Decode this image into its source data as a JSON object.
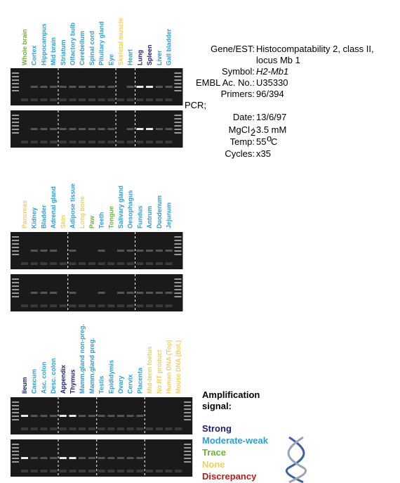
{
  "panels": [
    {
      "lanes": [
        {
          "label": "Whole brain",
          "color": "#6cb52a"
        },
        {
          "label": "Cortex",
          "color": "#2a9fd6"
        },
        {
          "label": "Hippocampus",
          "color": "#2a9fd6"
        },
        {
          "label": "Mid brain",
          "color": "#2a9fd6"
        },
        {
          "label": "Striatum",
          "color": "#2a9fd6"
        },
        {
          "label": "Olfactory bulb",
          "color": "#2a9fd6"
        },
        {
          "label": "Cerebellum",
          "color": "#2a9fd6"
        },
        {
          "label": "Spinal cord",
          "color": "#2a9fd6"
        },
        {
          "label": "Pituitary gland",
          "color": "#2a9fd6"
        },
        {
          "label": "Eye",
          "color": "#2a9fd6"
        },
        {
          "label": "Skeletal muscle",
          "color": "#f0cf5a"
        },
        {
          "label": "Heart",
          "color": "#2a9fd6"
        },
        {
          "label": "Lung",
          "color": "#1b1b78"
        },
        {
          "label": "Spleen",
          "color": "#1b1b78"
        },
        {
          "label": "Liver",
          "color": "#2a9fd6"
        },
        {
          "label": "Gall bladder",
          "color": "#2a9fd6"
        }
      ]
    },
    {
      "lanes": [
        {
          "label": "Pancreas",
          "color": "#f0cf5a"
        },
        {
          "label": "Kidney",
          "color": "#2a9fd6"
        },
        {
          "label": "Bladder",
          "color": "#2a9fd6"
        },
        {
          "label": "Adrenal gland",
          "color": "#2a9fd6"
        },
        {
          "label": "Skin",
          "color": "#f0cf5a"
        },
        {
          "label": "Adipose tissue",
          "color": "#2a9fd6"
        },
        {
          "label": "Long bone",
          "color": "#f0cf5a"
        },
        {
          "label": "Paw",
          "color": "#6cb52a"
        },
        {
          "label": "Teeth",
          "color": "#2a9fd6"
        },
        {
          "label": "Tongue",
          "color": "#6cb52a"
        },
        {
          "label": "Salivary gland",
          "color": "#2a9fd6"
        },
        {
          "label": "Oesophagus",
          "color": "#2a9fd6"
        },
        {
          "label": "Fundus",
          "color": "#2a9fd6"
        },
        {
          "label": "Antrum",
          "color": "#2a9fd6"
        },
        {
          "label": "Duodenum",
          "color": "#2a9fd6"
        },
        {
          "label": "Jejunum",
          "color": "#2a9fd6"
        }
      ]
    },
    {
      "lanes": [
        {
          "label": "Ileum",
          "color": "#1b1b78"
        },
        {
          "label": "Caecum",
          "color": "#2a9fd6"
        },
        {
          "label": "Asc. colon",
          "color": "#2a9fd6"
        },
        {
          "label": "Desc. colon",
          "color": "#2a9fd6"
        },
        {
          "label": "Appendix",
          "color": "#1b1b78"
        },
        {
          "label": "Thymus",
          "color": "#1b1b78"
        },
        {
          "label": "Mamm.gland non-preg.",
          "color": "#2a9fd6"
        },
        {
          "label": "Mamm.gland preg.",
          "color": "#2a9fd6"
        },
        {
          "label": "Testis",
          "color": "#2a9fd6"
        },
        {
          "label": "Epididymis",
          "color": "#2a9fd6"
        },
        {
          "label": "Ovary",
          "color": "#2a9fd6"
        },
        {
          "label": "Cervix",
          "color": "#2a9fd6"
        },
        {
          "label": "Placenta",
          "color": "#2a9fd6"
        },
        {
          "label": "Mid-term foetus",
          "color": "#f0cf5a"
        },
        {
          "label": "No RT product",
          "color": "#f0cf5a"
        },
        {
          "label": "Human DNA (Top)",
          "color": "#f0cf5a"
        },
        {
          "label": "Mouse DNA (Bot.)",
          "color": "#f0cf5a"
        }
      ]
    }
  ],
  "info": {
    "gene_label": "Gene/EST:",
    "gene_line1": "Histocompatability 2, class II,",
    "gene_line2": "locus Mb 1",
    "symbol_label": "Symbol:",
    "symbol": "H2-Mb1",
    "embl_label": "EMBL Ac. No.:",
    "embl": "U35330",
    "primers_label": "Primers:",
    "primers": "96/394",
    "pcr_label": "PCR;",
    "date_label": "Date:",
    "date": "13/6/97",
    "mgcl_label": "MgCl",
    "mgcl_sub": "2",
    "mgcl_colon": ":",
    "mgcl": "3.5 mM",
    "temp_label": "Temp:",
    "temp": "55",
    "temp_sup": "o",
    "temp_unit": "C",
    "cycles_label": "Cycles:",
    "cycles": "x35"
  },
  "legend": {
    "title_line1": "Amplification",
    "title_line2": "signal:",
    "items": [
      {
        "label": "Strong",
        "color": "#1b1b78"
      },
      {
        "label": "Moderate-weak",
        "color": "#2a9fd6"
      },
      {
        "label": "Trace",
        "color": "#6cb52a"
      },
      {
        "label": "None",
        "color": "#f0cf5a"
      },
      {
        "label": "Discrepancy",
        "color": "#c01818"
      }
    ]
  }
}
